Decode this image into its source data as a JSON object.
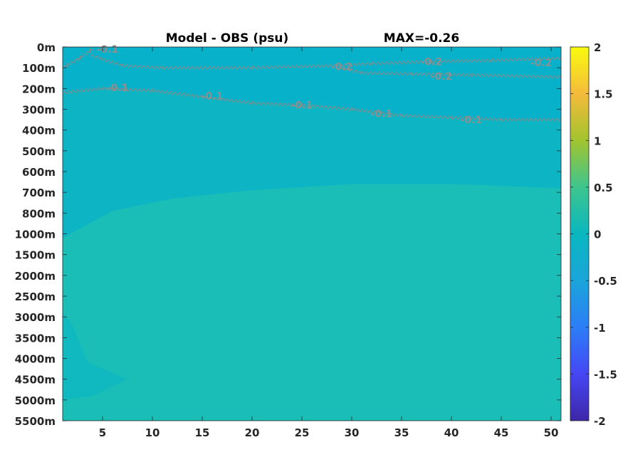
{
  "chart_data": {
    "type": "heatmap",
    "title_left": "Model - OBS (psu)",
    "title_right": "MAX=-0.26",
    "x": {
      "ticks": [
        5,
        10,
        15,
        20,
        25,
        30,
        35,
        40,
        45,
        50
      ],
      "tick_labels": [
        "5",
        "10",
        "15",
        "20",
        "25",
        "30",
        "35",
        "40",
        "45",
        "50"
      ],
      "range": [
        1,
        51
      ]
    },
    "y": {
      "levels": [
        "0m",
        "100m",
        "200m",
        "300m",
        "400m",
        "500m",
        "600m",
        "700m",
        "800m",
        "1000m",
        "1500m",
        "2000m",
        "2500m",
        "3000m",
        "3500m",
        "4000m",
        "4500m",
        "5000m",
        "5500m"
      ],
      "orientation": "depth-down"
    },
    "colorbar": {
      "colormap": "parula",
      "range": [
        -2,
        2
      ],
      "tick_labels": [
        "2",
        "1.5",
        "1",
        "0.5",
        "0",
        "-0.5",
        "-1",
        "-1.5",
        "-2"
      ],
      "tick_values": [
        2,
        1.5,
        1,
        0.5,
        0,
        -0.5,
        -1,
        -1.5,
        -2
      ]
    },
    "field_colors": {
      "surface": "#07b1c9",
      "upper": "#0cb4c4",
      "deep": "#1abeb6",
      "bottom_patch": "#10b8bf"
    },
    "contours": [
      {
        "level": -0.2,
        "label": "-0.2",
        "points": [
          [
            3.8,
            0.4
          ],
          [
            7,
            0.9
          ],
          [
            11,
            1.0
          ],
          [
            20,
            1.0
          ],
          [
            28.5,
            0.9
          ],
          [
            32,
            0.8
          ],
          [
            38,
            0.7
          ],
          [
            44,
            0.65
          ],
          [
            51,
            0.55
          ]
        ]
      },
      {
        "level": -0.2,
        "label": "-0.2",
        "points": [
          [
            29,
            1.0
          ],
          [
            31,
            1.25
          ],
          [
            36,
            1.3
          ],
          [
            42,
            1.35
          ],
          [
            51,
            1.45
          ]
        ]
      },
      {
        "level": -0.1,
        "label": "-0.1",
        "points": [
          [
            1,
            2.2
          ],
          [
            5,
            2.0
          ],
          [
            10,
            2.1
          ],
          [
            15,
            2.4
          ],
          [
            20,
            2.7
          ],
          [
            25,
            2.8
          ],
          [
            30,
            3.0
          ],
          [
            35,
            3.3
          ],
          [
            40,
            3.4
          ],
          [
            45,
            3.5
          ],
          [
            51,
            3.5
          ]
        ]
      },
      {
        "level": -0.1,
        "label": "-0.1",
        "points": [
          [
            1,
            1.0
          ],
          [
            2.5,
            0.6
          ],
          [
            4,
            0.1
          ]
        ]
      }
    ],
    "contour_labels": [
      {
        "text": "-0.1",
        "x": 5.5,
        "y": 0.1
      },
      {
        "text": "-0.2",
        "x": 29,
        "y": 0.95
      },
      {
        "text": "-0.2",
        "x": 38,
        "y": 0.7
      },
      {
        "text": "-0.2",
        "x": 49,
        "y": 0.75
      },
      {
        "text": "-0.2",
        "x": 39,
        "y": 1.4
      },
      {
        "text": "-0.1",
        "x": 6.5,
        "y": 1.95
      },
      {
        "text": "-0.1",
        "x": 16,
        "y": 2.35
      },
      {
        "text": "-0.1",
        "x": 25,
        "y": 2.8
      },
      {
        "text": "-0.1",
        "x": 33,
        "y": 3.2
      },
      {
        "text": "-0.1",
        "x": 42,
        "y": 3.5
      }
    ]
  }
}
